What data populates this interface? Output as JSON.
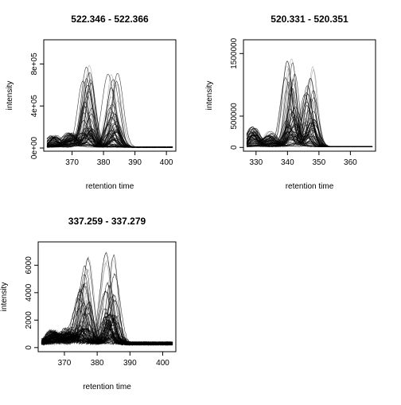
{
  "chart_data": [
    {
      "type": "line",
      "title": "522.346 - 522.366",
      "xlabel": "retention time",
      "ylabel": "intensity",
      "xlim": [
        361,
        403
      ],
      "ylim": [
        -30000,
        1030000
      ],
      "xticks": [
        370,
        380,
        390,
        400
      ],
      "xtick_labels": [
        "370",
        "380",
        "390",
        "400"
      ],
      "yticks": [
        0,
        400000,
        800000
      ],
      "ytick_labels": [
        "0e+00",
        "4e+05",
        "8e+05"
      ],
      "grid": false,
      "legend": "none",
      "line_color": "#000000",
      "series_count": 80,
      "peaks": [
        {
          "rt": 364.0,
          "height": 110000,
          "width": 1.6
        },
        {
          "rt": 369.5,
          "height": 140000,
          "width": 1.8
        },
        {
          "rt": 375.0,
          "height": 780000,
          "width": 1.5
        },
        {
          "rt": 383.0,
          "height": 730000,
          "width": 1.6
        }
      ],
      "baseline": 8000,
      "rt_start": 362,
      "rt_end": 402
    },
    {
      "type": "line",
      "title": "520.331 - 520.351",
      "xlabel": "retention time",
      "ylabel": "intensity",
      "xlim": [
        326,
        368
      ],
      "ylim": [
        -60000,
        1720000
      ],
      "xticks": [
        330,
        340,
        350,
        360
      ],
      "xtick_labels": [
        "330",
        "340",
        "350",
        "360"
      ],
      "yticks": [
        0,
        500000,
        1500000
      ],
      "ytick_labels": [
        "0",
        "500000",
        "1500000"
      ],
      "grid": false,
      "legend": "none",
      "line_color": "#000000",
      "series_count": 80,
      "peaks": [
        {
          "rt": 329.0,
          "height": 330000,
          "width": 1.5
        },
        {
          "rt": 334.5,
          "height": 250000,
          "width": 1.8
        },
        {
          "rt": 341.0,
          "height": 1450000,
          "width": 1.5
        },
        {
          "rt": 347.0,
          "height": 1280000,
          "width": 1.5
        }
      ],
      "baseline": 12000,
      "rt_start": 327,
      "rt_end": 367
    },
    {
      "type": "line",
      "title": "337.259 - 337.279",
      "xlabel": "retention time",
      "ylabel": "intensity",
      "xlim": [
        362,
        404
      ],
      "ylim": [
        -300,
        7700
      ],
      "xticks": [
        370,
        380,
        390,
        400
      ],
      "xtick_labels": [
        "370",
        "380",
        "390",
        "400"
      ],
      "yticks": [
        0,
        2000,
        4000,
        6000
      ],
      "ytick_labels": [
        "0",
        "2000",
        "4000",
        "6000"
      ],
      "grid": false,
      "legend": "none",
      "line_color": "#000000",
      "series_count": 80,
      "peaks": [
        {
          "rt": 366.5,
          "height": 900,
          "width": 1.6
        },
        {
          "rt": 371.0,
          "height": 1100,
          "width": 1.8
        },
        {
          "rt": 376.0,
          "height": 6300,
          "width": 1.6
        },
        {
          "rt": 384.0,
          "height": 6600,
          "width": 1.5
        }
      ],
      "baseline": 300,
      "rt_start": 363,
      "rt_end": 403
    }
  ]
}
